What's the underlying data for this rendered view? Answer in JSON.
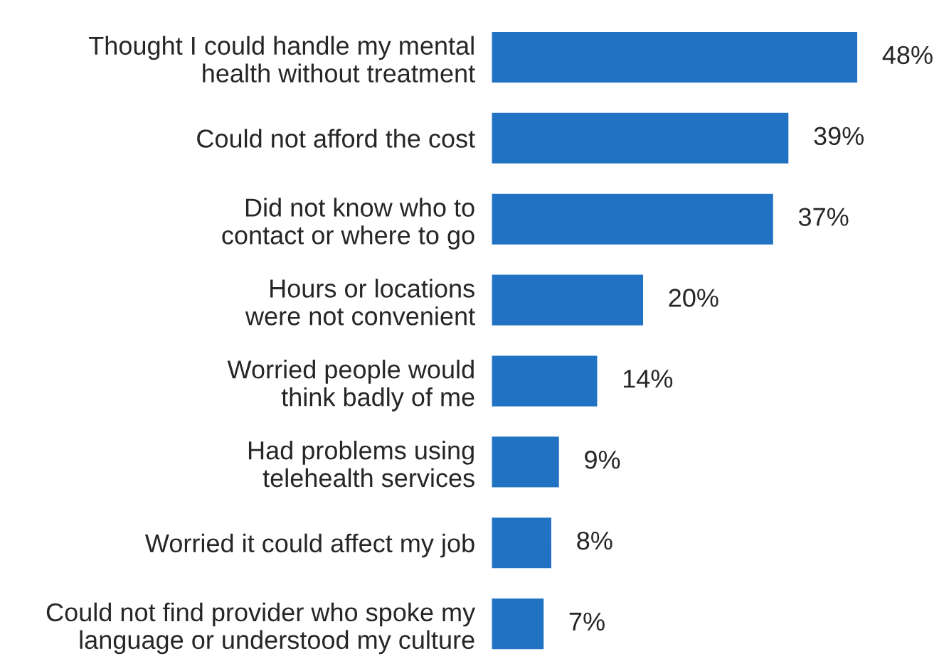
{
  "chart_data": {
    "type": "bar",
    "orientation": "horizontal",
    "categories": [
      "Thought I could handle my mental\nhealth without treatment",
      "Could not afford the cost",
      "Did not know who to\ncontact or where to go",
      "Hours or locations\nwere not convenient",
      "Worried people would\nthink badly of me",
      "Had problems using\ntelehealth services",
      "Worried it could affect my job",
      "Could not find provider who spoke my\nlanguage or understood my culture"
    ],
    "values": [
      48,
      39,
      37,
      20,
      14,
      9,
      8,
      7
    ],
    "value_labels": [
      "48%",
      "39%",
      "37%",
      "20%",
      "14%",
      "9%",
      "8%",
      "7%"
    ],
    "color": "#2272c3"
  }
}
